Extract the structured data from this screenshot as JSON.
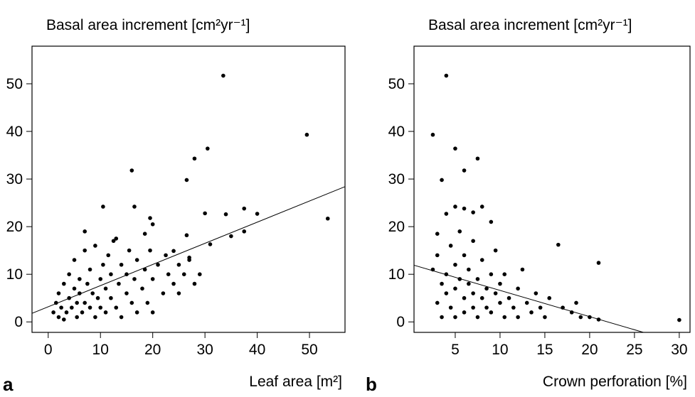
{
  "chart_data": [
    {
      "type": "scatter",
      "panel_label": "a",
      "title": "Basal area increment [cm²yr⁻¹]",
      "x_label": "Leaf area  [m²]",
      "color": "#000000",
      "x": [
        33.5,
        49.5,
        53.5,
        30.5,
        28,
        16,
        26.5,
        10.5,
        16.5,
        37.5,
        40,
        34,
        30,
        19.5,
        37.5,
        35,
        31,
        26.5,
        20,
        18.5,
        7,
        13,
        24,
        27,
        1,
        1.5,
        2,
        2,
        2.5,
        3,
        3,
        3.5,
        4,
        4,
        4.5,
        5,
        5,
        5.5,
        5.5,
        6,
        6,
        6.5,
        7,
        7,
        7.5,
        8,
        8,
        8.5,
        9,
        9,
        9.5,
        10,
        10,
        10.5,
        11,
        11,
        11.5,
        12,
        12,
        12.5,
        13,
        13.5,
        14,
        14,
        15,
        15,
        15.5,
        16,
        16.5,
        17,
        17,
        18,
        18.5,
        19,
        19.5,
        20,
        20,
        21,
        22,
        22.5,
        23,
        24,
        25,
        25,
        26,
        27,
        28,
        29
      ],
      "y": [
        51.7,
        39.3,
        21.7,
        36.4,
        34.3,
        31.8,
        29.8,
        24.2,
        24.2,
        23.8,
        22.7,
        22.6,
        22.8,
        21.8,
        19,
        18,
        16.3,
        18.2,
        20.5,
        18.5,
        19,
        17.5,
        14.9,
        13.5,
        2,
        4,
        1,
        6,
        3,
        0.5,
        8,
        2,
        5,
        10,
        3,
        7,
        13,
        1,
        4,
        9,
        6,
        2,
        15,
        4,
        8,
        3,
        11,
        6,
        1,
        16,
        5,
        9,
        3,
        12,
        7,
        2,
        14,
        5,
        10,
        17,
        3,
        8,
        12,
        1,
        6,
        10,
        15,
        4,
        9,
        13,
        2,
        7,
        11,
        4,
        15,
        9,
        2,
        12,
        6,
        14,
        10,
        8,
        12,
        6,
        10,
        13,
        8,
        10
      ],
      "xlim": [
        -3.1,
        56.8
      ],
      "ylim": [
        -2.2,
        57.9
      ],
      "xticks": [
        0,
        10,
        20,
        30,
        40,
        50
      ],
      "yticks": [
        0,
        10,
        20,
        30,
        40,
        50
      ],
      "fit_line": {
        "x": [
          -3.1,
          56.8
        ],
        "y": [
          1.8,
          28.4
        ]
      }
    },
    {
      "type": "scatter",
      "panel_label": "b",
      "title": "Basal area increment [cm²yr⁻¹]",
      "x_label": "Crown perforation  [%]",
      "color": "#000000",
      "x": [
        4,
        2.5,
        5,
        7.5,
        6,
        3.5,
        30,
        21,
        16.5,
        5,
        8,
        4,
        6,
        7,
        9,
        3,
        2.5,
        3,
        3,
        3.5,
        3.5,
        4,
        4,
        4.5,
        4.5,
        5,
        5,
        5,
        5.5,
        5.5,
        6,
        6,
        6,
        6.5,
        6.5,
        7,
        7,
        7,
        7.5,
        7.5,
        8,
        8,
        8.5,
        8.5,
        9,
        9,
        9.5,
        9.5,
        10,
        10,
        10.5,
        10.5,
        11,
        11.5,
        12,
        12,
        12.5,
        13,
        13.5,
        14,
        14.5,
        15,
        15.5,
        17,
        18,
        18.5,
        19,
        20,
        21
      ],
      "y": [
        51.7,
        39.3,
        36.4,
        34.3,
        31.8,
        29.8,
        0.4,
        12.4,
        16.2,
        24.2,
        24.2,
        22.7,
        23.8,
        23,
        21,
        18.5,
        11,
        4,
        14,
        8,
        1,
        10,
        6,
        16,
        3,
        12,
        7,
        1,
        9,
        19,
        5,
        14,
        2,
        8,
        11,
        3,
        17,
        6,
        9,
        1,
        5,
        13,
        7,
        3,
        10,
        2,
        6,
        15,
        4,
        8,
        1,
        10,
        5,
        3,
        7,
        1,
        11,
        4,
        2,
        6,
        3,
        1,
        5,
        3,
        2,
        4,
        1,
        1,
        0.5
      ],
      "xlim": [
        0.4,
        31.2
      ],
      "ylim": [
        -2.2,
        57.9
      ],
      "xticks": [
        5,
        10,
        15,
        20,
        25,
        30
      ],
      "yticks": [
        0,
        10,
        20,
        30,
        40,
        50
      ],
      "fit_line": {
        "x": [
          0.4,
          26.0
        ],
        "y": [
          11.9,
          -2.2
        ]
      }
    }
  ]
}
